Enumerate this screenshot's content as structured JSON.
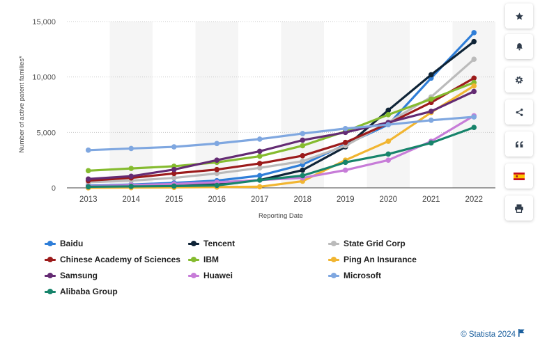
{
  "chart_data": {
    "type": "line",
    "xlabel": "Reporting Date",
    "ylabel": "Number of active patent families*",
    "ylim": [
      0,
      15000
    ],
    "yticks": [
      "0",
      "5,000",
      "10,000",
      "15,000"
    ],
    "ytick_values": [
      0,
      5000,
      10000,
      15000
    ],
    "categories": [
      "2013",
      "2014",
      "2015",
      "2016",
      "2017",
      "2018",
      "2019",
      "2020",
      "2021",
      "2022"
    ],
    "grid": "horizontal dotted",
    "legend_position": "bottom",
    "series": [
      {
        "name": "Baidu",
        "color": "#2f7ed8",
        "values": [
          200,
          300,
          450,
          650,
          1100,
          2100,
          3900,
          5700,
          9900,
          14000
        ]
      },
      {
        "name": "Tencent",
        "color": "#0f2437",
        "values": [
          150,
          200,
          280,
          400,
          700,
          1600,
          3700,
          7000,
          10200,
          13200
        ]
      },
      {
        "name": "State Grid Corp",
        "color": "#bbbbbb",
        "values": [
          500,
          650,
          900,
          1300,
          1800,
          2400,
          3800,
          5900,
          8200,
          11600
        ]
      },
      {
        "name": "Chinese Academy of Sciences",
        "color": "#9c1b1b",
        "values": [
          650,
          900,
          1300,
          1650,
          2200,
          2900,
          4100,
          5800,
          7700,
          9900
        ]
      },
      {
        "name": "IBM",
        "color": "#85bb2f",
        "values": [
          1550,
          1750,
          1950,
          2300,
          2850,
          3800,
          5100,
          6600,
          8000,
          9500
        ]
      },
      {
        "name": "Ping An Insurance",
        "color": "#f1b531",
        "values": [
          0,
          20,
          40,
          70,
          100,
          600,
          2500,
          4200,
          6800,
          9200
        ]
      },
      {
        "name": "Samsung",
        "color": "#642b73",
        "values": [
          800,
          1050,
          1650,
          2500,
          3300,
          4300,
          5000,
          5900,
          6900,
          8700
        ]
      },
      {
        "name": "Huawei",
        "color": "#c77cd8",
        "values": [
          150,
          250,
          350,
          500,
          700,
          900,
          1600,
          2500,
          4200,
          6500
        ]
      },
      {
        "name": "Microsoft",
        "color": "#7fa7e0",
        "values": [
          3400,
          3550,
          3700,
          4000,
          4400,
          4900,
          5350,
          5700,
          6100,
          6400
        ]
      },
      {
        "name": "Alibaba Group",
        "color": "#17846b",
        "values": [
          100,
          130,
          160,
          220,
          700,
          1100,
          2300,
          3050,
          4050,
          5450
        ]
      }
    ]
  },
  "toolbar": [
    {
      "icon": "star-icon",
      "label": "Favorite"
    },
    {
      "icon": "bell-icon",
      "label": "Notification"
    },
    {
      "icon": "gear-icon",
      "label": "Settings"
    },
    {
      "icon": "share-icon",
      "label": "Share"
    },
    {
      "icon": "quote-icon",
      "label": "Cite"
    },
    {
      "icon": "spain-flag-icon",
      "label": "Language"
    },
    {
      "icon": "print-icon",
      "label": "Print"
    }
  ],
  "credit": {
    "text": "© Statista 2024"
  }
}
